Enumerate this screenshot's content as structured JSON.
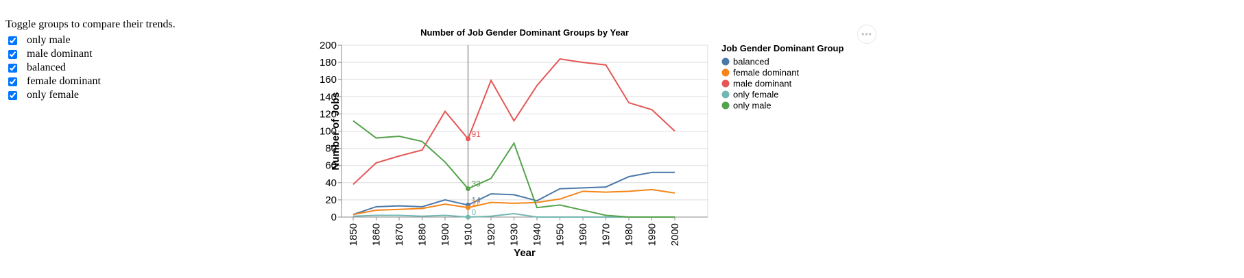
{
  "controls": {
    "intro": "Toggle groups to compare their trends.",
    "toggles": [
      {
        "label": "only male",
        "checked": true
      },
      {
        "label": "male dominant",
        "checked": true
      },
      {
        "label": "balanced",
        "checked": true
      },
      {
        "label": "female dominant",
        "checked": true
      },
      {
        "label": "only female",
        "checked": true
      }
    ]
  },
  "menu": {
    "label": "•••",
    "icon": "ellipsis-icon"
  },
  "chart_data": {
    "type": "line",
    "title": "Number of Job Gender Dominant Groups by Year",
    "xlabel": "Year",
    "ylabel": "Number of Jobs",
    "x": [
      1850,
      1860,
      1870,
      1880,
      1900,
      1910,
      1920,
      1930,
      1940,
      1950,
      1960,
      1970,
      1980,
      1990,
      2000
    ],
    "yticks": [
      0,
      20,
      40,
      60,
      80,
      100,
      120,
      140,
      160,
      180,
      200
    ],
    "ylim": [
      0,
      200
    ],
    "grid": true,
    "legend": {
      "title": "Job Gender Dominant Group",
      "position": "right"
    },
    "series": [
      {
        "name": "balanced",
        "color": "#4c78a8",
        "values": [
          3,
          12,
          13,
          12,
          20,
          14,
          27,
          26,
          19,
          33,
          34,
          35,
          47,
          52,
          52
        ]
      },
      {
        "name": "female dominant",
        "color": "#f58518",
        "values": [
          3,
          8,
          9,
          10,
          15,
          11,
          17,
          16,
          17,
          21,
          30,
          29,
          30,
          32,
          28
        ]
      },
      {
        "name": "male dominant",
        "color": "#e45756",
        "values": [
          38,
          63,
          71,
          78,
          123,
          91,
          159,
          112,
          153,
          184,
          180,
          177,
          133,
          125,
          100
        ]
      },
      {
        "name": "only female",
        "color": "#72b7b2",
        "values": [
          1,
          2,
          2,
          1,
          2,
          0,
          1,
          4,
          0,
          0,
          0,
          0,
          0,
          0,
          0
        ]
      },
      {
        "name": "only male",
        "color": "#54a24b",
        "values": [
          112,
          92,
          94,
          88,
          64,
          33,
          45,
          86,
          11,
          14,
          8,
          2,
          0,
          0,
          0
        ]
      }
    ],
    "hover": {
      "x": 1910,
      "labels": [
        {
          "series": "male dominant",
          "text": "91"
        },
        {
          "series": "only male",
          "text": "33"
        },
        {
          "series": "balanced",
          "text": "14"
        },
        {
          "series": "female dominant",
          "text": "11"
        },
        {
          "series": "only female",
          "text": "0"
        }
      ]
    }
  }
}
